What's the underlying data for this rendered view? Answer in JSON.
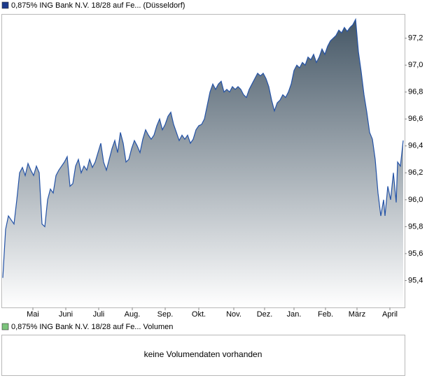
{
  "chart_data": {
    "type": "area",
    "series": [
      {
        "name": "0,875% ING Bank N.V. 18/28 auf Fe... (Düsseldorf)",
        "color": "#2352a6",
        "values": [
          95.42,
          95.78,
          95.88,
          95.85,
          95.82,
          96.0,
          96.2,
          96.24,
          96.18,
          96.27,
          96.22,
          96.18,
          96.25,
          96.2,
          95.82,
          95.8,
          96.0,
          96.08,
          96.05,
          96.18,
          96.22,
          96.25,
          96.28,
          96.32,
          96.1,
          96.12,
          96.25,
          96.3,
          96.2,
          96.25,
          96.22,
          96.3,
          96.24,
          96.28,
          96.35,
          96.42,
          96.28,
          96.22,
          96.3,
          96.38,
          96.44,
          96.35,
          96.5,
          96.42,
          96.28,
          96.3,
          96.38,
          96.44,
          96.4,
          96.35,
          96.45,
          96.52,
          96.48,
          96.45,
          96.48,
          96.55,
          96.6,
          96.52,
          96.56,
          96.62,
          96.65,
          96.56,
          96.5,
          96.44,
          96.48,
          96.45,
          96.48,
          96.42,
          96.45,
          96.52,
          96.55,
          96.56,
          96.6,
          96.7,
          96.8,
          96.86,
          96.82,
          96.86,
          96.88,
          96.8,
          96.82,
          96.8,
          96.84,
          96.82,
          96.84,
          96.82,
          96.78,
          96.76,
          96.82,
          96.86,
          96.9,
          96.94,
          96.92,
          96.94,
          96.9,
          96.84,
          96.74,
          96.66,
          96.72,
          96.74,
          96.78,
          96.76,
          96.8,
          96.86,
          96.96,
          97.0,
          96.98,
          97.02,
          97.0,
          97.06,
          97.04,
          97.08,
          97.02,
          97.06,
          97.12,
          97.08,
          97.14,
          97.18,
          97.2,
          97.22,
          97.26,
          97.24,
          97.28,
          97.25,
          97.28,
          97.3,
          97.34,
          97.1,
          96.95,
          96.78,
          96.65,
          96.5,
          96.45,
          96.3,
          96.05,
          95.88,
          96.0,
          95.88,
          96.1,
          96.0,
          96.2,
          95.98,
          96.28,
          96.25,
          96.44
        ]
      }
    ],
    "x": [
      2,
      6,
      10,
      14,
      18,
      22,
      26,
      30,
      34,
      38,
      42,
      46,
      50,
      54,
      58,
      62,
      66,
      70,
      74,
      78,
      82,
      86,
      90,
      94,
      98,
      102,
      106,
      110,
      114,
      118,
      122,
      126,
      130,
      134,
      138,
      142,
      146,
      150,
      154,
      158,
      162,
      166,
      170,
      174,
      178,
      182,
      186,
      190,
      194,
      198,
      202,
      206,
      210,
      214,
      218,
      222,
      226,
      230,
      234,
      238,
      242,
      246,
      250,
      254,
      258,
      262,
      266,
      270,
      274,
      278,
      282,
      286,
      290,
      294,
      298,
      302,
      306,
      310,
      314,
      318,
      322,
      326,
      330,
      334,
      338,
      342,
      346,
      350,
      354,
      358,
      362,
      366,
      370,
      374,
      378,
      382,
      386,
      390,
      394,
      398,
      402,
      406,
      410,
      414,
      418,
      422,
      426,
      430,
      434,
      438,
      442,
      446,
      450,
      454,
      458,
      462,
      466,
      470,
      474,
      478,
      482,
      486,
      490,
      494,
      498,
      502,
      506,
      510,
      514,
      518,
      522,
      526,
      530,
      534,
      538,
      542,
      546,
      548,
      552,
      556,
      560,
      564,
      566,
      570,
      574
    ],
    "xlim": [
      0,
      576
    ],
    "xticks": [
      {
        "value": 45,
        "label": "Mai"
      },
      {
        "value": 92,
        "label": "Juni"
      },
      {
        "value": 139,
        "label": "Juli"
      },
      {
        "value": 187,
        "label": "Aug."
      },
      {
        "value": 234,
        "label": "Sep."
      },
      {
        "value": 282,
        "label": "Okt."
      },
      {
        "value": 332,
        "label": "Nov."
      },
      {
        "value": 376,
        "label": "Dez."
      },
      {
        "value": 418,
        "label": "Jan."
      },
      {
        "value": 463,
        "label": "Feb."
      },
      {
        "value": 508,
        "label": "März"
      },
      {
        "value": 555,
        "label": "April"
      }
    ],
    "ylim": [
      95.2,
      97.38
    ],
    "yticks": [
      {
        "value": 95.4,
        "label": "95,4"
      },
      {
        "value": 95.6,
        "label": "95,6"
      },
      {
        "value": 95.8,
        "label": "95,8"
      },
      {
        "value": 96.0,
        "label": "96,0"
      },
      {
        "value": 96.2,
        "label": "96,2"
      },
      {
        "value": 96.4,
        "label": "96,4"
      },
      {
        "value": 96.6,
        "label": "96,6"
      },
      {
        "value": 96.8,
        "label": "96,8"
      },
      {
        "value": 97.0,
        "label": "97,0"
      },
      {
        "value": 97.2,
        "label": "97,2"
      }
    ],
    "legend_swatch_color": "#1c3a8c",
    "area_top_color": "#455766",
    "area_bottom_color": "#ffffff"
  },
  "volume_panel": {
    "legend": "0,875% ING Bank N.V. 18/28 auf Fe... Volumen",
    "swatch_color": "#7cc47c",
    "message": "keine Volumendaten vorhanden"
  }
}
